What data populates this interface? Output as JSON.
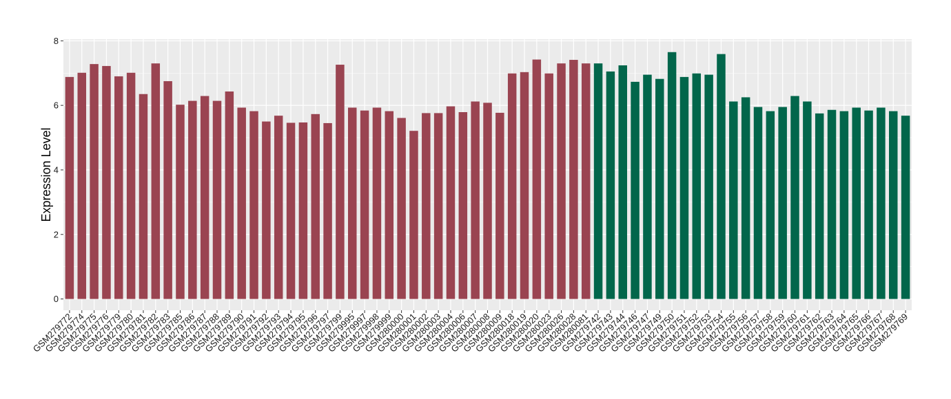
{
  "chart_data": {
    "type": "bar",
    "title": "",
    "xlabel": "",
    "ylabel": "Expression Level",
    "ylim": [
      -0.35,
      8.05
    ],
    "yticks": [
      0,
      2,
      4,
      6,
      8
    ],
    "grid": true,
    "legend": "none",
    "colors": {
      "group1": "#9a4451",
      "group2": "#02664b",
      "panel": "#ebebeb",
      "grid": "#ffffff"
    },
    "categories": [
      "GSM279772",
      "GSM279774",
      "GSM279775",
      "GSM279776",
      "GSM279779",
      "GSM279780",
      "GSM279781",
      "GSM279782",
      "GSM279783",
      "GSM279785",
      "GSM279786",
      "GSM279787",
      "GSM279788",
      "GSM279789",
      "GSM279790",
      "GSM279791",
      "GSM279792",
      "GSM279793",
      "GSM279794",
      "GSM279795",
      "GSM279796",
      "GSM279797",
      "GSM279799",
      "GSM279995",
      "GSM279997",
      "GSM279998",
      "GSM279999",
      "GSM280000",
      "GSM280001",
      "GSM280002",
      "GSM280003",
      "GSM280004",
      "GSM280006",
      "GSM280007",
      "GSM280008",
      "GSM280009",
      "GSM280018",
      "GSM280019",
      "GSM280020",
      "GSM280023",
      "GSM280026",
      "GSM280028",
      "GSM280081",
      "GSM279742",
      "GSM279743",
      "GSM279744",
      "GSM279746",
      "GSM279747",
      "GSM279749",
      "GSM279750",
      "GSM279751",
      "GSM279752",
      "GSM279753",
      "GSM279754",
      "GSM279755",
      "GSM279756",
      "GSM279757",
      "GSM279758",
      "GSM279759",
      "GSM279760",
      "GSM279761",
      "GSM279762",
      "GSM279763",
      "GSM279764",
      "GSM279765",
      "GSM279766",
      "GSM279767",
      "GSM279768",
      "GSM279769"
    ],
    "values": [
      6.88,
      7.01,
      7.28,
      7.22,
      6.9,
      7.01,
      6.35,
      7.3,
      6.75,
      6.02,
      6.14,
      6.29,
      6.14,
      6.43,
      5.93,
      5.82,
      5.5,
      5.68,
      5.46,
      5.47,
      5.73,
      5.45,
      7.26,
      5.93,
      5.84,
      5.93,
      5.82,
      5.61,
      5.21,
      5.76,
      5.76,
      5.97,
      5.79,
      6.12,
      6.08,
      5.77,
      6.99,
      7.03,
      7.42,
      6.99,
      7.3,
      7.41,
      7.3,
      7.3,
      7.05,
      7.24,
      6.73,
      6.95,
      6.82,
      7.65,
      6.88,
      6.99,
      6.95,
      7.59,
      6.12,
      6.25,
      5.95,
      5.82,
      5.95,
      6.29,
      6.12,
      5.75,
      5.86,
      5.82,
      5.93,
      5.84,
      5.93,
      5.82,
      5.68
    ],
    "groups": [
      1,
      1,
      1,
      1,
      1,
      1,
      1,
      1,
      1,
      1,
      1,
      1,
      1,
      1,
      1,
      1,
      1,
      1,
      1,
      1,
      1,
      1,
      1,
      1,
      1,
      1,
      1,
      1,
      1,
      1,
      1,
      1,
      1,
      1,
      1,
      1,
      1,
      1,
      1,
      1,
      1,
      1,
      1,
      2,
      2,
      2,
      2,
      2,
      2,
      2,
      2,
      2,
      2,
      2,
      2,
      2,
      2,
      2,
      2,
      2,
      2,
      2,
      2,
      2,
      2,
      2,
      2,
      2,
      2
    ]
  }
}
